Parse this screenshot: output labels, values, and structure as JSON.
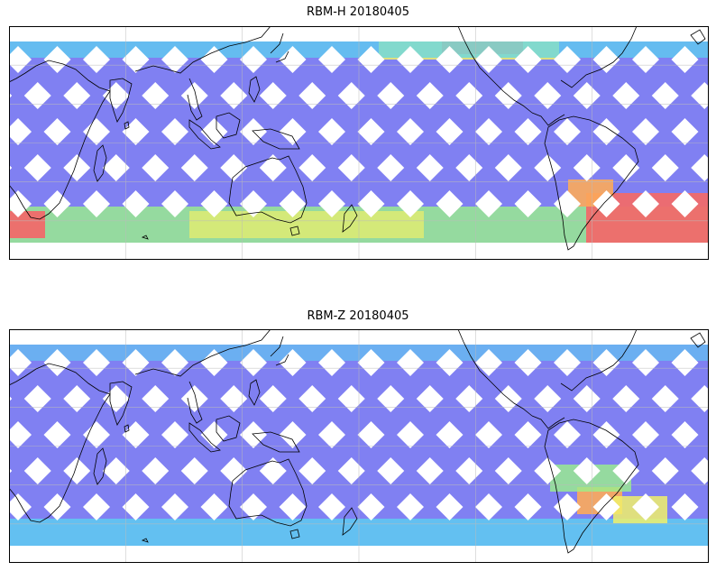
{
  "panels": [
    {
      "title": "RBM-H 20180405",
      "swath_color": "#6a6af0",
      "hot_colors": [
        "#f06a6a",
        "#fcaa5a",
        "#f0f06a",
        "#9af08a",
        "#5ad6f0"
      ]
    },
    {
      "title": "RBM-Z 20180405",
      "swath_color": "#6a6af0",
      "hot_colors": [
        "#fcaa5a",
        "#f0f06a",
        "#9af08a",
        "#5ad6f0"
      ]
    }
  ],
  "colormap": "jet",
  "gridlines": true,
  "coastlines": true
}
